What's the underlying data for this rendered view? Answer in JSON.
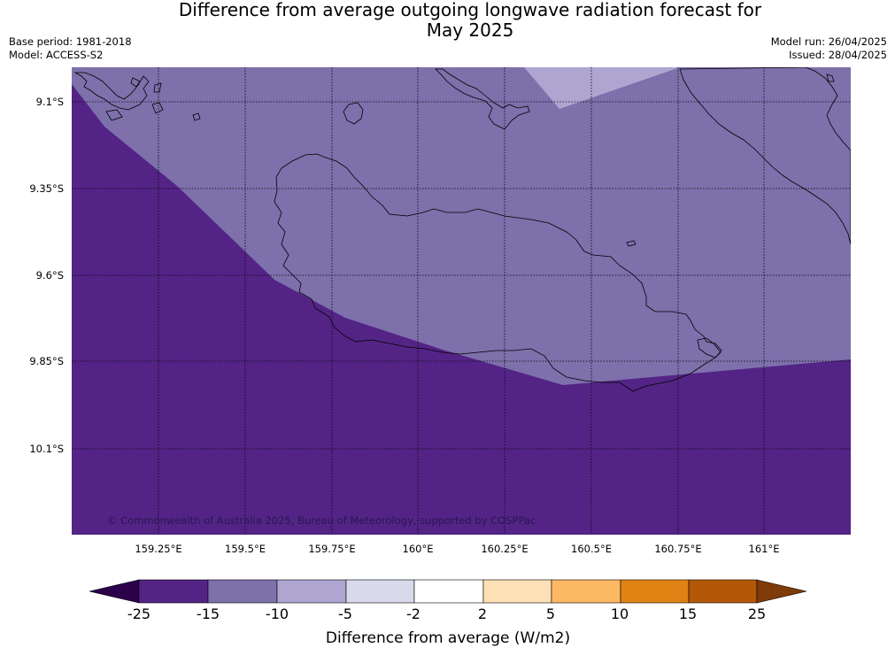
{
  "title": {
    "line1": "Difference from average outgoing longwave radiation forecast for",
    "line2": "May 2025"
  },
  "info": {
    "base_period": "Base period: 1981-2018",
    "model": "Model: ACCESS-S2",
    "model_run": "Model run: 26/04/2025",
    "issued": "Issued: 28/04/2025"
  },
  "map": {
    "lat_labels": [
      "9.1°S",
      "9.35°S",
      "9.6°S",
      "9.85°S",
      "10.1°S"
    ],
    "lon_labels": [
      "159.25°E",
      "159.5°E",
      "159.75°E",
      "160°E",
      "160.25°E",
      "160.5°E",
      "160.75°E",
      "161°E"
    ],
    "copyright": "© Commonwealth of Australia 2025, Bureau of Meteorology, supported by COSPPac",
    "region_colors": {
      "minus25_to_minus15": "#532486",
      "minus15_to_minus10": "#7d70ab",
      "minus10_to_minus5": "#aea6d0"
    }
  },
  "colorbar": {
    "title": "Difference from average (W/m2)",
    "ticks": [
      "-25",
      "-15",
      "-10",
      "-5",
      "-2",
      "2",
      "5",
      "10",
      "15",
      "25"
    ],
    "colors": [
      "#2d004b",
      "#532486",
      "#7d70ab",
      "#aea6d0",
      "#d8d9eb",
      "#ffffff",
      "#fee0b6",
      "#fdb863",
      "#e08214",
      "#b35806",
      "#7f3b08"
    ]
  }
}
